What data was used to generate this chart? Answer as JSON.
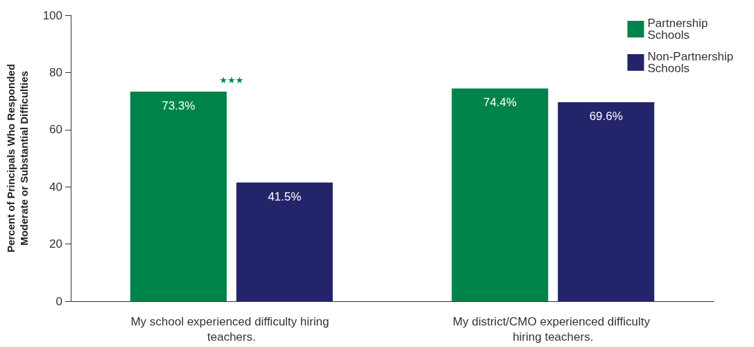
{
  "chart_data": {
    "type": "bar",
    "ylabel": "Percent of Principals Who Responded Moderate or Substantial Difficulties",
    "categories": [
      "My school experienced difficulty hiring teachers.",
      "My district/CMO experienced difficulty hiring teachers."
    ],
    "series": [
      {
        "name": "Partnership Schools",
        "color": "#00834a",
        "values": [
          73.3,
          74.4
        ],
        "value_labels": [
          "73.3%",
          "74.4%"
        ]
      },
      {
        "name": "Non-Partnership Schools",
        "color": "#24246b",
        "values": [
          41.5,
          69.6
        ],
        "value_labels": [
          "41.5%",
          "69.6%"
        ]
      }
    ],
    "annotations": [
      "★★★"
    ],
    "ylim": [
      0,
      100
    ],
    "yticks": [
      0,
      20,
      40,
      60,
      80,
      100
    ],
    "grid": false,
    "legend": "top right"
  }
}
